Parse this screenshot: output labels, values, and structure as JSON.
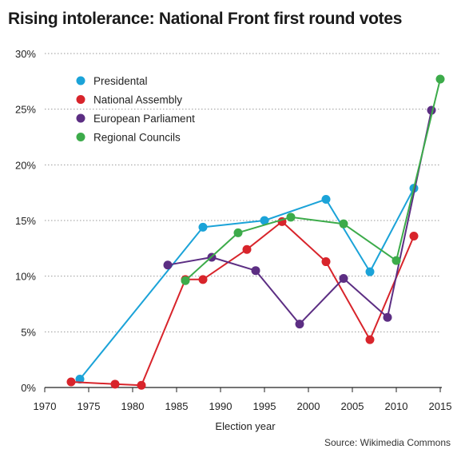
{
  "title": "Rising intolerance: National Front first round votes",
  "source": "Source: Wikimedia Commons",
  "chart_data": {
    "type": "line",
    "title": "Rising intolerance: National Front first round votes",
    "xlabel": "Election year",
    "ylabel": "",
    "xlim": [
      1970,
      2015
    ],
    "ylim": [
      0,
      30
    ],
    "x_ticks": [
      1970,
      1975,
      1980,
      1985,
      1990,
      1995,
      2000,
      2005,
      2010,
      2015
    ],
    "x_tick_labels": [
      "1970",
      "1975",
      "1980",
      "1985",
      "1990",
      "1995",
      "2000",
      "2005",
      "2010",
      "2015"
    ],
    "y_ticks": [
      0,
      5,
      10,
      15,
      20,
      25,
      30
    ],
    "y_tick_labels": [
      "0%",
      "5%",
      "10%",
      "15%",
      "20%",
      "25%",
      "30%"
    ],
    "grid": "horizontal dotted",
    "legend_position": "top-left",
    "series": [
      {
        "name": "Presidental",
        "color": "#1ba3d8",
        "points": [
          [
            1974,
            0.75
          ],
          [
            1988,
            14.4
          ],
          [
            1995,
            15.0
          ],
          [
            2002,
            16.9
          ],
          [
            2007,
            10.4
          ],
          [
            2012,
            17.9
          ]
        ]
      },
      {
        "name": "National Assembly",
        "color": "#d8242b",
        "points": [
          [
            1973,
            0.5
          ],
          [
            1978,
            0.3
          ],
          [
            1981,
            0.2
          ],
          [
            1986,
            9.7
          ],
          [
            1988,
            9.7
          ],
          [
            1993,
            12.4
          ],
          [
            1997,
            14.9
          ],
          [
            2002,
            11.3
          ],
          [
            2007,
            4.3
          ],
          [
            2012,
            13.6
          ]
        ]
      },
      {
        "name": "European Parliament",
        "color": "#5c2e83",
        "points": [
          [
            1984,
            11.0
          ],
          [
            1989,
            11.7
          ],
          [
            1994,
            10.5
          ],
          [
            1999,
            5.7
          ],
          [
            2004,
            9.8
          ],
          [
            2009,
            6.3
          ],
          [
            2014,
            24.9
          ]
        ]
      },
      {
        "name": "Regional Councils",
        "color": "#3cab4a",
        "points": [
          [
            1986,
            9.6
          ],
          [
            1992,
            13.9
          ],
          [
            1998,
            15.3
          ],
          [
            2004,
            14.7
          ],
          [
            2010,
            11.4
          ],
          [
            2015,
            27.7
          ]
        ]
      }
    ]
  }
}
